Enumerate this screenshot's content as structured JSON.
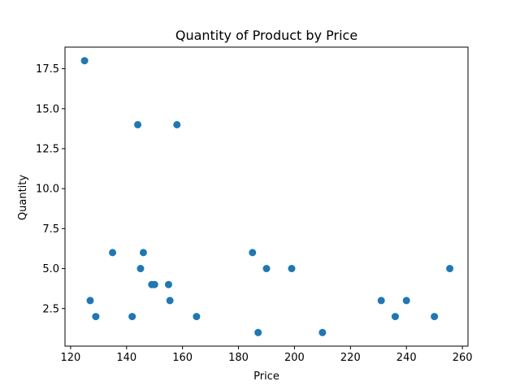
{
  "chart_data": {
    "type": "scatter",
    "title": "Quantity of Product by Price",
    "xlabel": "Price",
    "ylabel": "Quantity",
    "xlim": [
      118,
      262
    ],
    "ylim": [
      0.15,
      18.85
    ],
    "xticks": [
      120,
      140,
      160,
      180,
      200,
      220,
      240,
      260
    ],
    "yticks": [
      2.5,
      5.0,
      7.5,
      10.0,
      12.5,
      15.0,
      17.5
    ],
    "xtick_labels": [
      "120",
      "140",
      "160",
      "180",
      "200",
      "220",
      "240",
      "260"
    ],
    "ytick_labels": [
      "2.5",
      "5.0",
      "7.5",
      "10.0",
      "12.5",
      "15.0",
      "17.5"
    ],
    "grid": false,
    "marker_color": "#1f77b4",
    "points": [
      {
        "x": 125,
        "y": 18
      },
      {
        "x": 127,
        "y": 3
      },
      {
        "x": 129,
        "y": 2
      },
      {
        "x": 135,
        "y": 6
      },
      {
        "x": 142,
        "y": 2
      },
      {
        "x": 144,
        "y": 14
      },
      {
        "x": 145,
        "y": 5
      },
      {
        "x": 146,
        "y": 6
      },
      {
        "x": 149,
        "y": 4
      },
      {
        "x": 150,
        "y": 4
      },
      {
        "x": 155,
        "y": 4
      },
      {
        "x": 155.5,
        "y": 3
      },
      {
        "x": 158,
        "y": 14
      },
      {
        "x": 165,
        "y": 2
      },
      {
        "x": 185,
        "y": 6
      },
      {
        "x": 187,
        "y": 1
      },
      {
        "x": 190,
        "y": 5
      },
      {
        "x": 199,
        "y": 5
      },
      {
        "x": 210,
        "y": 1
      },
      {
        "x": 231,
        "y": 3
      },
      {
        "x": 236,
        "y": 2
      },
      {
        "x": 240,
        "y": 3
      },
      {
        "x": 250,
        "y": 2
      },
      {
        "x": 255.5,
        "y": 5
      }
    ]
  }
}
